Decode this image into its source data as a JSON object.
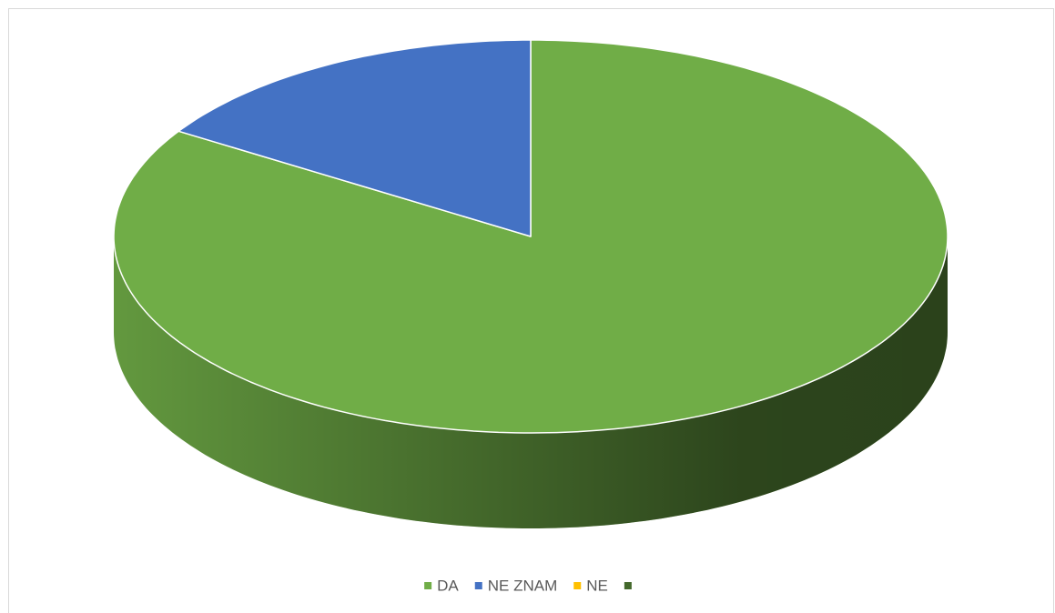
{
  "chart_data": {
    "type": "pie3d",
    "categories": [
      "DA",
      "NE ZNAM",
      "NE",
      null
    ],
    "values": [
      84,
      16,
      0,
      0
    ],
    "colors": [
      "#70ad47",
      "#4472c4",
      "#ffc000",
      "#43682b"
    ],
    "legend": "bottom"
  }
}
